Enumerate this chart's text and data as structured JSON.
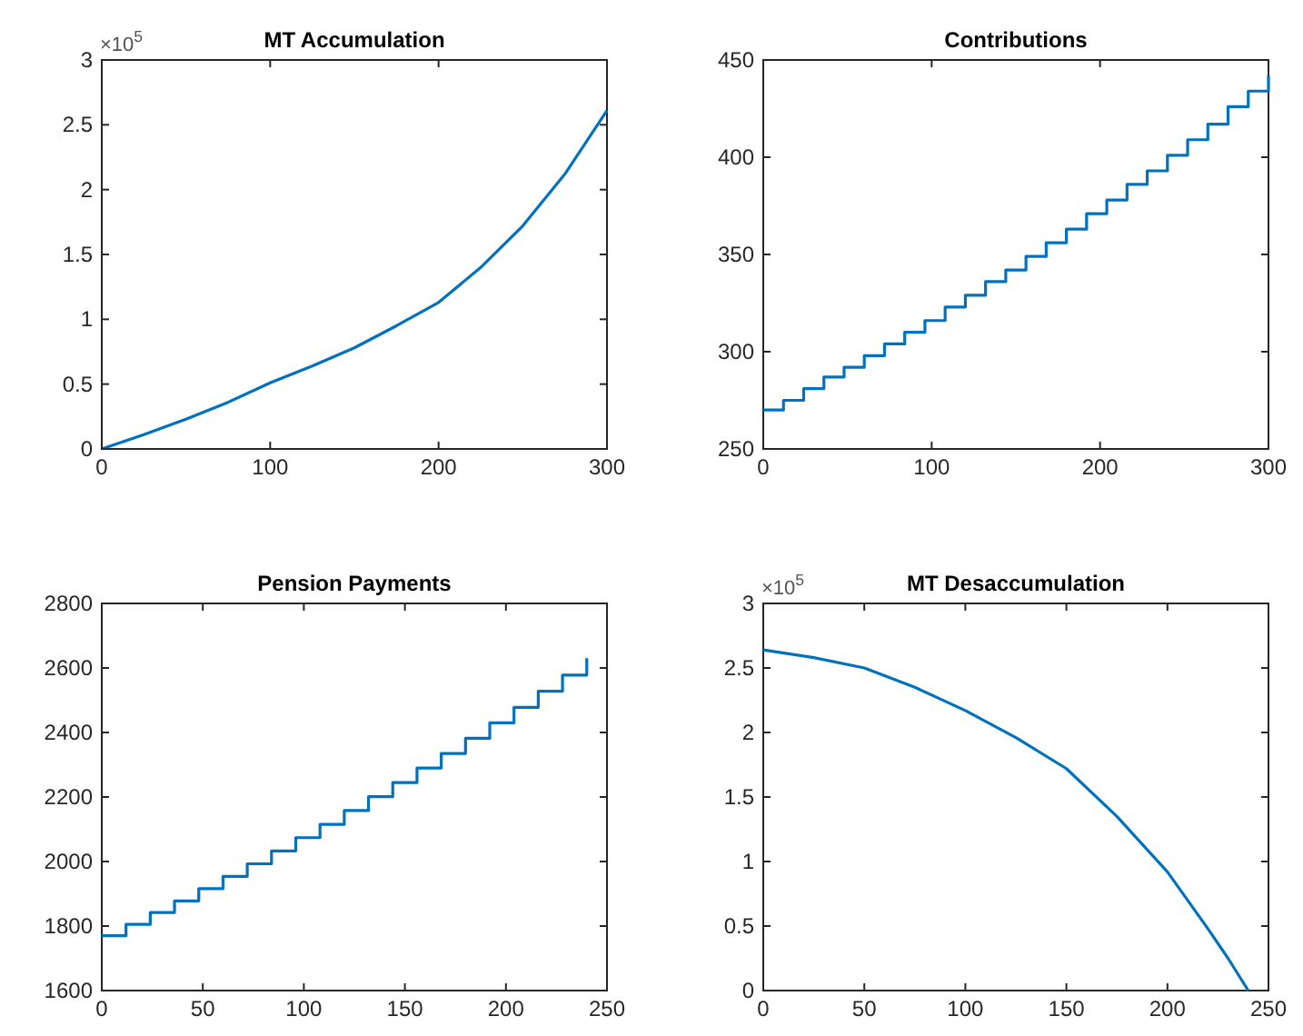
{
  "chart_data": [
    {
      "type": "line",
      "title": "MT Accumulation",
      "annotations": [
        "×10$^{5}$"
      ],
      "xlim": [
        0,
        300
      ],
      "xticks": [
        0,
        100,
        200,
        300
      ],
      "ylim": [
        0,
        3
      ],
      "yticks": [
        0,
        0.5,
        1,
        1.5,
        2,
        2.5,
        3
      ],
      "grid": false,
      "series": [
        {
          "color": "#0072bd",
          "x": [
            0,
            25,
            50,
            75,
            100,
            125,
            150,
            175,
            200,
            225,
            250,
            275,
            300
          ],
          "values": [
            0,
            0.11,
            0.23,
            0.36,
            0.51,
            0.64,
            0.78,
            0.95,
            1.13,
            1.4,
            1.72,
            2.12,
            2.61
          ]
        }
      ]
    },
    {
      "type": "step",
      "title": "Contributions",
      "xlim": [
        0,
        300
      ],
      "xticks": [
        0,
        100,
        200,
        300
      ],
      "ylim": [
        250,
        450
      ],
      "yticks": [
        250,
        300,
        350,
        400,
        450
      ],
      "grid": false,
      "series": [
        {
          "color": "#0072bd",
          "x": [
            0,
            12,
            24,
            36,
            48,
            60,
            72,
            84,
            96,
            108,
            120,
            132,
            144,
            156,
            168,
            180,
            192,
            204,
            216,
            228,
            240,
            252,
            264,
            276,
            288,
            300
          ],
          "values": [
            270,
            275,
            281,
            287,
            292,
            298,
            304,
            310,
            316,
            323,
            329,
            336,
            342,
            349,
            356,
            363,
            371,
            378,
            386,
            393,
            401,
            409,
            417,
            426,
            434,
            442
          ]
        }
      ]
    },
    {
      "type": "step",
      "title": "Pension Payments",
      "xlim": [
        0,
        250
      ],
      "xticks": [
        0,
        50,
        100,
        150,
        200,
        250
      ],
      "ylim": [
        1600,
        2800
      ],
      "yticks": [
        1600,
        1800,
        2000,
        2200,
        2400,
        2600,
        2800
      ],
      "grid": false,
      "series": [
        {
          "color": "#0072bd",
          "x": [
            0,
            12,
            24,
            36,
            48,
            60,
            72,
            84,
            96,
            108,
            120,
            132,
            144,
            156,
            168,
            180,
            192,
            204,
            216,
            228,
            240
          ],
          "values": [
            1770,
            1805,
            1842,
            1878,
            1916,
            1954,
            1993,
            2033,
            2074,
            2115,
            2158,
            2201,
            2245,
            2290,
            2335,
            2382,
            2430,
            2478,
            2528,
            2578,
            2630
          ]
        }
      ]
    },
    {
      "type": "line",
      "title": "MT Desaccumulation",
      "annotations": [
        "×10$^{5}$"
      ],
      "xlim": [
        0,
        250
      ],
      "xticks": [
        0,
        50,
        100,
        150,
        200,
        250
      ],
      "ylim": [
        0,
        3
      ],
      "yticks": [
        0,
        0.5,
        1,
        1.5,
        2,
        2.5,
        3
      ],
      "grid": false,
      "series": [
        {
          "color": "#0072bd",
          "x": [
            0,
            25,
            50,
            75,
            100,
            125,
            150,
            175,
            200,
            210,
            220,
            230,
            240
          ],
          "values": [
            2.64,
            2.58,
            2.5,
            2.35,
            2.17,
            1.96,
            1.72,
            1.35,
            0.92,
            0.7,
            0.48,
            0.25,
            0
          ]
        }
      ]
    }
  ]
}
